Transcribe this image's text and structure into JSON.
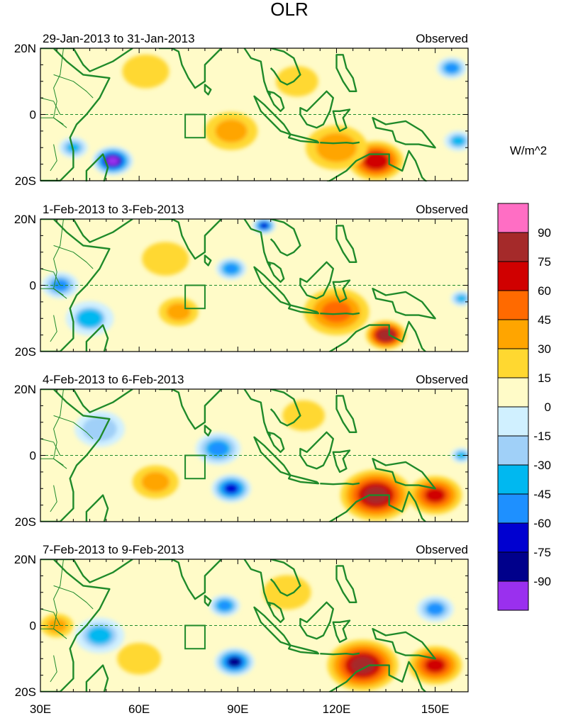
{
  "chart_data": {
    "type": "heatmap",
    "title": "OLR",
    "units_label": "W/m^2",
    "x_ticks": [
      "30E",
      "60E",
      "90E",
      "120E",
      "150E"
    ],
    "x_tick_values": [
      30,
      60,
      90,
      120,
      150
    ],
    "xlim": [
      30,
      160
    ],
    "y_ticks": [
      "20N",
      "0",
      "20S"
    ],
    "y_tick_values": [
      20,
      0,
      -20
    ],
    "ylim": [
      -20,
      20
    ],
    "colorbar": {
      "levels": [
        "90",
        "75",
        "60",
        "45",
        "30",
        "15",
        "0",
        "-15",
        "-30",
        "-45",
        "-60",
        "-75",
        "-90"
      ],
      "colors": [
        "#ff6ec4",
        "#a52a2a",
        "#d00000",
        "#ff6a00",
        "#ffa500",
        "#ffd830",
        "#fffbc8",
        "#d0f0ff",
        "#a0d0f8",
        "#00b8f0",
        "#1e90ff",
        "#0000d0",
        "#00008b",
        "#9a30ee"
      ]
    },
    "equator_line": "dashed",
    "box_region": {
      "lon": [
        74,
        80
      ],
      "lat": [
        -7,
        0
      ]
    },
    "panels": [
      {
        "left_title": "29-Jan-2013 to 31-Jan-2013",
        "right_title": "Observed",
        "anomalies": [
          {
            "lon": 52,
            "lat": -14,
            "value": -95,
            "spread": 5
          },
          {
            "lon": 40,
            "lat": -10,
            "value": -45,
            "spread": 4
          },
          {
            "lon": 62,
            "lat": 13,
            "value": 20,
            "spread": 8
          },
          {
            "lon": 132,
            "lat": -14,
            "value": 70,
            "spread": 7
          },
          {
            "lon": 120,
            "lat": -10,
            "value": 35,
            "spread": 9
          },
          {
            "lon": 88,
            "lat": -5,
            "value": 30,
            "spread": 8
          },
          {
            "lon": 155,
            "lat": 14,
            "value": -55,
            "spread": 4
          },
          {
            "lon": 157,
            "lat": -8,
            "value": -40,
            "spread": 4
          },
          {
            "lon": 108,
            "lat": 10,
            "value": 15,
            "spread": 8
          }
        ]
      },
      {
        "left_title": "1-Feb-2013 to 3-Feb-2013",
        "right_title": "Observed",
        "anomalies": [
          {
            "lon": 135,
            "lat": -15,
            "value": 85,
            "spread": 5
          },
          {
            "lon": 120,
            "lat": -8,
            "value": 45,
            "spread": 9
          },
          {
            "lon": 88,
            "lat": 5,
            "value": -60,
            "spread": 4
          },
          {
            "lon": 98,
            "lat": 18,
            "value": -70,
            "spread": 3
          },
          {
            "lon": 36,
            "lat": 0,
            "value": -50,
            "spread": 5
          },
          {
            "lon": 45,
            "lat": -10,
            "value": -35,
            "spread": 7
          },
          {
            "lon": 72,
            "lat": -8,
            "value": 30,
            "spread": 6
          },
          {
            "lon": 158,
            "lat": -4,
            "value": -45,
            "spread": 3
          },
          {
            "lon": 68,
            "lat": 8,
            "value": 20,
            "spread": 8
          }
        ]
      },
      {
        "left_title": "4-Feb-2013 to 6-Feb-2013",
        "right_title": "Observed",
        "anomalies": [
          {
            "lon": 88,
            "lat": -10,
            "value": -75,
            "spread": 5
          },
          {
            "lon": 84,
            "lat": 2,
            "value": -55,
            "spread": 6
          },
          {
            "lon": 132,
            "lat": -12,
            "value": 75,
            "spread": 9
          },
          {
            "lon": 150,
            "lat": -12,
            "value": 60,
            "spread": 7
          },
          {
            "lon": 65,
            "lat": -8,
            "value": 30,
            "spread": 7
          },
          {
            "lon": 48,
            "lat": 8,
            "value": -25,
            "spread": 8
          },
          {
            "lon": 110,
            "lat": 12,
            "value": 15,
            "spread": 8
          },
          {
            "lon": 158,
            "lat": 0,
            "value": -40,
            "spread": 3
          }
        ]
      },
      {
        "left_title": "7-Feb-2013 to 9-Feb-2013",
        "right_title": "Observed",
        "anomalies": [
          {
            "lon": 89,
            "lat": -11,
            "value": -80,
            "spread": 5
          },
          {
            "lon": 86,
            "lat": 6,
            "value": -60,
            "spread": 4
          },
          {
            "lon": 128,
            "lat": -12,
            "value": 75,
            "spread": 9
          },
          {
            "lon": 150,
            "lat": -12,
            "value": 60,
            "spread": 7
          },
          {
            "lon": 48,
            "lat": -3,
            "value": -40,
            "spread": 7
          },
          {
            "lon": 60,
            "lat": -10,
            "value": 25,
            "spread": 7
          },
          {
            "lon": 35,
            "lat": 0,
            "value": 30,
            "spread": 5
          },
          {
            "lon": 150,
            "lat": 5,
            "value": -50,
            "spread": 5
          },
          {
            "lon": 105,
            "lat": 10,
            "value": 15,
            "spread": 9
          }
        ]
      }
    ]
  }
}
